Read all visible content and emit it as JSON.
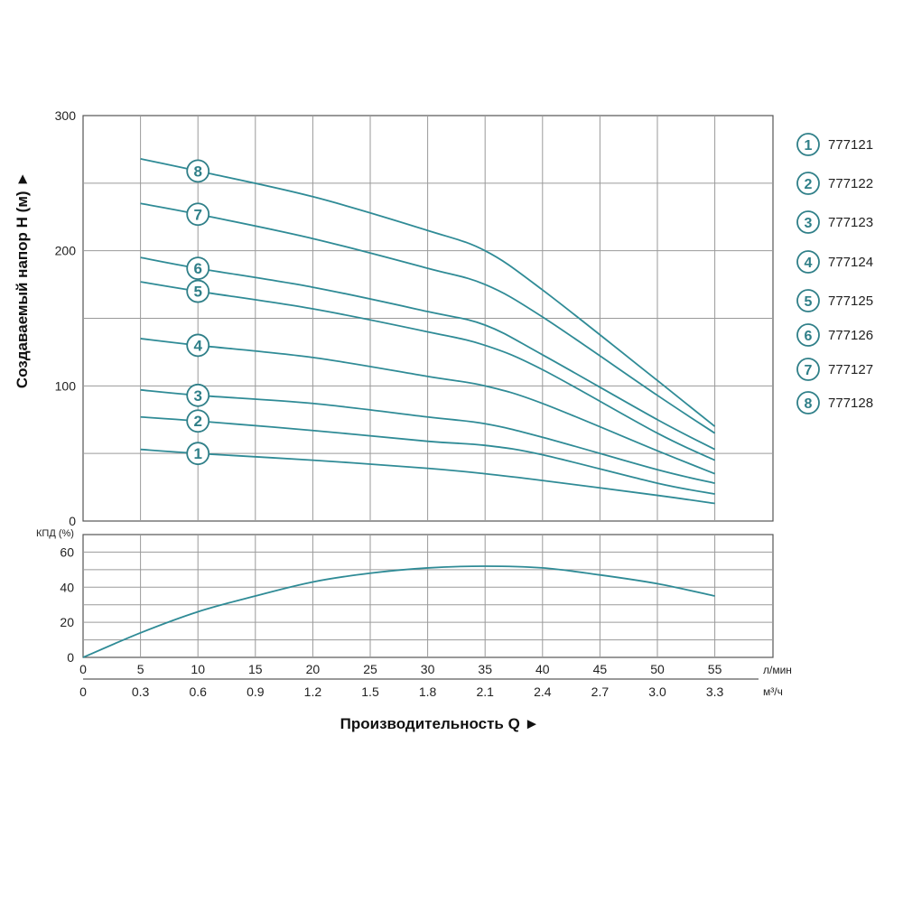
{
  "chart_data": [
    {
      "type": "line",
      "ylabel": "Создаваемый напор H (м) ►",
      "ylim": [
        0,
        300
      ],
      "y_ticks": [
        0,
        100,
        200,
        300
      ],
      "xlim": [
        0,
        60
      ],
      "grid": true,
      "legend_position": "right",
      "series": [
        {
          "name": "777121",
          "badge": "1",
          "x": [
            5,
            10,
            20,
            30,
            35,
            40,
            50,
            55
          ],
          "y": [
            53,
            50,
            45,
            39,
            35,
            30,
            19,
            13
          ]
        },
        {
          "name": "777122",
          "badge": "2",
          "x": [
            5,
            10,
            20,
            30,
            35,
            40,
            50,
            55
          ],
          "y": [
            77,
            74,
            67,
            59,
            56,
            49,
            28,
            20
          ]
        },
        {
          "name": "777123",
          "badge": "3",
          "x": [
            5,
            10,
            20,
            30,
            35,
            40,
            50,
            55
          ],
          "y": [
            97,
            93,
            87,
            77,
            72,
            62,
            38,
            28
          ]
        },
        {
          "name": "777124",
          "badge": "4",
          "x": [
            5,
            10,
            20,
            30,
            35,
            40,
            50,
            55
          ],
          "y": [
            135,
            130,
            121,
            107,
            100,
            87,
            52,
            35
          ]
        },
        {
          "name": "777125",
          "badge": "5",
          "x": [
            5,
            10,
            20,
            30,
            35,
            40,
            50,
            55
          ],
          "y": [
            177,
            170,
            157,
            140,
            130,
            112,
            65,
            45
          ]
        },
        {
          "name": "777126",
          "badge": "6",
          "x": [
            5,
            10,
            20,
            30,
            35,
            40,
            50,
            55
          ],
          "y": [
            195,
            187,
            173,
            155,
            145,
            123,
            75,
            53
          ]
        },
        {
          "name": "777127",
          "badge": "7",
          "x": [
            5,
            10,
            20,
            30,
            35,
            40,
            50,
            55
          ],
          "y": [
            235,
            227,
            209,
            187,
            175,
            151,
            93,
            65
          ]
        },
        {
          "name": "777128",
          "badge": "8",
          "x": [
            5,
            10,
            20,
            30,
            35,
            40,
            50,
            55
          ],
          "y": [
            268,
            259,
            240,
            215,
            200,
            171,
            104,
            70
          ]
        }
      ]
    },
    {
      "type": "line",
      "ylabel": "КПД (%)",
      "ylim": [
        0,
        70
      ],
      "y_ticks": [
        0,
        20,
        40,
        60
      ],
      "xlim": [
        0,
        60
      ],
      "grid": true,
      "series": [
        {
          "name": "",
          "x": [
            0,
            5,
            10,
            15,
            20,
            25,
            30,
            35,
            40,
            45,
            50,
            55
          ],
          "y": [
            0,
            14,
            26,
            35,
            43,
            48,
            51,
            52,
            51,
            47,
            42,
            35
          ]
        }
      ]
    }
  ],
  "x_axis": {
    "primary_ticks": [
      "0",
      "5",
      "10",
      "15",
      "20",
      "25",
      "30",
      "35",
      "40",
      "45",
      "50",
      "55"
    ],
    "primary_unit": "л/мин",
    "secondary_ticks": [
      "0",
      "0.3",
      "0.6",
      "0.9",
      "1.2",
      "1.5",
      "1.8",
      "2.1",
      "2.4",
      "2.7",
      "3.0",
      "3.3"
    ],
    "secondary_unit": "м³/ч",
    "title": "Производительность Q ►"
  },
  "colors": {
    "curve": "#2f8b96",
    "grid": "#9a9a9a",
    "frame": "#555555",
    "badge": "#2f7f88"
  }
}
